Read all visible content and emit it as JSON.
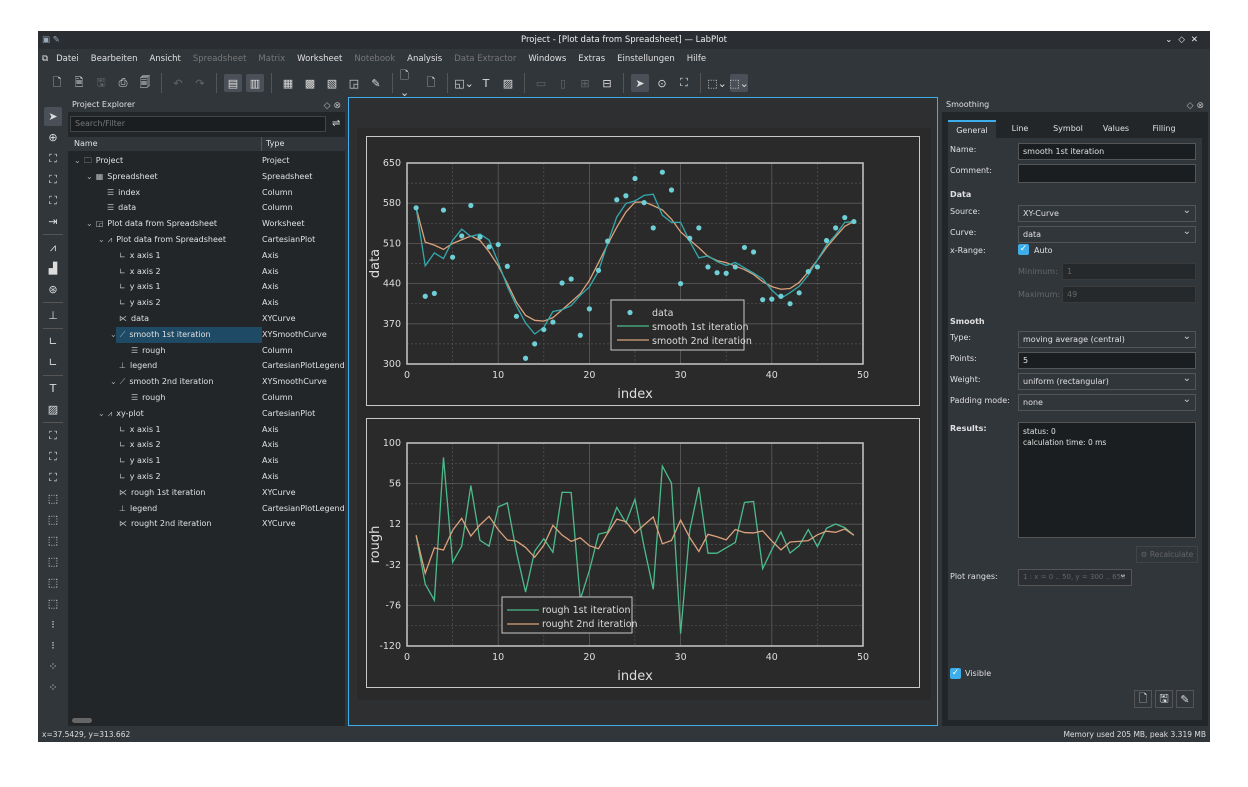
{
  "window": {
    "title": "Project - [Plot data from Spreadsheet] — LabPlot"
  },
  "menu": [
    {
      "label": "Datei",
      "enabled": true
    },
    {
      "label": "Bearbeiten",
      "enabled": true
    },
    {
      "label": "Ansicht",
      "enabled": true
    },
    {
      "label": "Spreadsheet",
      "enabled": false
    },
    {
      "label": "Matrix",
      "enabled": false
    },
    {
      "label": "Worksheet",
      "enabled": true
    },
    {
      "label": "Notebook",
      "enabled": false
    },
    {
      "label": "Analysis",
      "enabled": true
    },
    {
      "label": "Data Extractor",
      "enabled": false
    },
    {
      "label": "Windows",
      "enabled": true
    },
    {
      "label": "Extras",
      "enabled": true
    },
    {
      "label": "Einstellungen",
      "enabled": true
    },
    {
      "label": "Hilfe",
      "enabled": true
    }
  ],
  "explorer": {
    "title": "Project Explorer",
    "search_placeholder": "Search/Filter",
    "col_name": "Name",
    "col_type": "Type",
    "items": [
      {
        "name": "Project",
        "type": "Project",
        "level": 0,
        "icon": "folder-icon"
      },
      {
        "name": "Spreadsheet",
        "type": "Spreadsheet",
        "level": 1,
        "icon": "spreadsheet-icon"
      },
      {
        "name": "index",
        "type": "Column",
        "level": 2,
        "icon": "column-icon"
      },
      {
        "name": "data",
        "type": "Column",
        "level": 2,
        "icon": "column-icon"
      },
      {
        "name": "Plot data from Spreadsheet",
        "type": "Worksheet",
        "level": 1,
        "icon": "worksheet-icon"
      },
      {
        "name": "Plot data from Spreadsheet",
        "type": "CartesianPlot",
        "level": 2,
        "icon": "plot-icon"
      },
      {
        "name": "x axis 1",
        "type": "Axis",
        "level": 3,
        "icon": "axis-icon"
      },
      {
        "name": "x axis 2",
        "type": "Axis",
        "level": 3,
        "icon": "axis-icon"
      },
      {
        "name": "y axis 1",
        "type": "Axis",
        "level": 3,
        "icon": "axis-icon"
      },
      {
        "name": "y axis 2",
        "type": "Axis",
        "level": 3,
        "icon": "axis-icon"
      },
      {
        "name": "data",
        "type": "XYCurve",
        "level": 3,
        "icon": "curve-icon"
      },
      {
        "name": "smooth 1st iteration",
        "type": "XYSmoothCurve",
        "level": 3,
        "icon": "smooth-curve-icon",
        "selected": true
      },
      {
        "name": "rough",
        "type": "Column",
        "level": 4,
        "icon": "column-icon"
      },
      {
        "name": "legend",
        "type": "CartesianPlotLegend",
        "level": 3,
        "icon": "legend-icon"
      },
      {
        "name": "smooth 2nd iteration",
        "type": "XYSmoothCurve",
        "level": 3,
        "icon": "smooth-curve-icon"
      },
      {
        "name": "rough",
        "type": "Column",
        "level": 4,
        "icon": "column-icon"
      },
      {
        "name": "xy-plot",
        "type": "CartesianPlot",
        "level": 2,
        "icon": "plot-icon"
      },
      {
        "name": "x axis 1",
        "type": "Axis",
        "level": 3,
        "icon": "axis-icon"
      },
      {
        "name": "x axis 2",
        "type": "Axis",
        "level": 3,
        "icon": "axis-icon"
      },
      {
        "name": "y axis 1",
        "type": "Axis",
        "level": 3,
        "icon": "axis-icon"
      },
      {
        "name": "y axis 2",
        "type": "Axis",
        "level": 3,
        "icon": "axis-icon"
      },
      {
        "name": "rough 1st iteration",
        "type": "XYCurve",
        "level": 3,
        "icon": "curve-icon"
      },
      {
        "name": "legend",
        "type": "CartesianPlotLegend",
        "level": 3,
        "icon": "legend-icon"
      },
      {
        "name": "rought 2nd iteration",
        "type": "XYCurve",
        "level": 3,
        "icon": "curve-icon"
      }
    ]
  },
  "smoothing": {
    "title": "Smoothing",
    "tabs": [
      "General",
      "Line",
      "Symbol",
      "Values",
      "Filling"
    ],
    "name_label": "Name:",
    "name_value": "smooth 1st iteration",
    "comment_label": "Comment:",
    "comment_value": "",
    "data_header": "Data",
    "source_label": "Source:",
    "source_value": "XY-Curve",
    "curve_label": "Curve:",
    "curve_value": "data",
    "xrange_label": "x-Range:",
    "auto_label": "Auto",
    "auto_checked": true,
    "min_label": "Minimum:",
    "min_value": "1",
    "max_label": "Maximum:",
    "max_value": "49",
    "smooth_header": "Smooth",
    "type_label": "Type:",
    "type_value": "moving average (central)",
    "points_label": "Points:",
    "points_value": "5",
    "weight_label": "Weight:",
    "weight_value": "uniform (rectangular)",
    "padding_label": "Padding mode:",
    "padding_value": "none",
    "results_label": "Results:",
    "results_lines": [
      "status: 0",
      "calculation time: 0 ms"
    ],
    "recalc_label": "Recalculate",
    "ranges_label": "Plot ranges:",
    "ranges_value": "1 : x = 0 .. 50, y = 300 .. 650",
    "visible_label": "Visible",
    "visible_checked": true
  },
  "status": {
    "coords": "x=37.5429, y=313.662",
    "memory": "Memory used 205 MB, peak 3.319 MB"
  },
  "colors": {
    "accent": "#3daee9",
    "data": "#6fcfd6",
    "smooth1": "#34a9ad",
    "smooth2": "#dba27c",
    "rough1": "#4cbb8c",
    "rough2": "#dba27c"
  },
  "chart_data": [
    {
      "type": "scatter+line",
      "xlabel": "index",
      "ylabel": "data",
      "xlim": [
        0,
        50
      ],
      "ylim": [
        300,
        650
      ],
      "xticks": [
        "0",
        "10",
        "20",
        "30",
        "40",
        "50"
      ],
      "yticks": [
        "300",
        "370",
        "440",
        "510",
        "580",
        "650"
      ],
      "grid": true,
      "legend": "bottom-center",
      "x": [
        1,
        2,
        3,
        4,
        5,
        6,
        7,
        8,
        9,
        10,
        11,
        12,
        13,
        14,
        15,
        16,
        17,
        18,
        19,
        20,
        21,
        22,
        23,
        24,
        25,
        26,
        27,
        28,
        29,
        30,
        31,
        32,
        33,
        34,
        35,
        36,
        37,
        38,
        39,
        40,
        41,
        42,
        43,
        44,
        45,
        46,
        47,
        48,
        49
      ],
      "series": [
        {
          "name": "data",
          "values": [
            572,
            418,
            423,
            568,
            486,
            523,
            576,
            521,
            504,
            508,
            470,
            383,
            310,
            335,
            360,
            373,
            441,
            448,
            350,
            396,
            463,
            514,
            586,
            593,
            623,
            581,
            537,
            634,
            603,
            440,
            519,
            537,
            469,
            459,
            458,
            469,
            503,
            495,
            412,
            413,
            418,
            405,
            424,
            461,
            469,
            515,
            537,
            555,
            548
          ]
        },
        {
          "name": "smooth 1st iteration",
          "derived": "moving average (central), 5 points, uniform weights, of data"
        },
        {
          "name": "smooth 2nd iteration",
          "derived": "moving average (central), 5 points, uniform weights, of smooth 1st iteration"
        }
      ]
    },
    {
      "type": "line",
      "xlabel": "index",
      "ylabel": "rough",
      "xlim": [
        0,
        50
      ],
      "ylim": [
        -120,
        100
      ],
      "xticks": [
        "0",
        "10",
        "20",
        "30",
        "40",
        "50"
      ],
      "yticks": [
        "-120",
        "-76",
        "-32",
        "12",
        "56",
        "100"
      ],
      "grid": true,
      "legend": "bottom-left",
      "series": [
        {
          "name": "rough 1st iteration",
          "derived": "data minus smooth 1st iteration"
        },
        {
          "name": "rought 2nd iteration",
          "derived": "smooth 1st iteration minus smooth 2nd iteration"
        }
      ]
    }
  ]
}
